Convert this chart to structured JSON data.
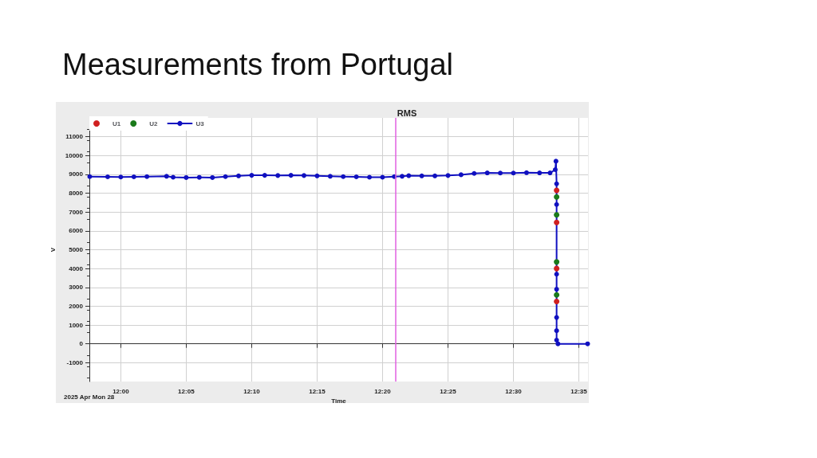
{
  "chart_data": {
    "type": "line",
    "title": "Measurements from Portugal",
    "subtitle": "RMS",
    "xlabel": "Time",
    "ylabel": "V",
    "annotations": [
      "2025 Apr Mon 28"
    ],
    "series": [
      {
        "name": "U1",
        "type": "scatter",
        "color": "#d02020",
        "x": [
          12.555,
          12.555,
          12.555,
          12.555
        ],
        "values": [
          8150,
          6450,
          4000,
          2250
        ]
      },
      {
        "name": "U2",
        "type": "scatter",
        "color": "#1a7a1a",
        "x": [
          12.555,
          12.555,
          12.555,
          12.555
        ],
        "values": [
          7800,
          6850,
          4350,
          2600
        ]
      },
      {
        "name": "U3",
        "color": "#1010c0",
        "x": [
          11.9605,
          11.9833,
          12.0,
          12.0167,
          12.0333,
          12.0583,
          12.0667,
          12.0833,
          12.1,
          12.1167,
          12.1333,
          12.15,
          12.1667,
          12.1833,
          12.2,
          12.2167,
          12.2333,
          12.25,
          12.2667,
          12.2833,
          12.3,
          12.3167,
          12.3333,
          12.3483,
          12.3583,
          12.3667,
          12.3833,
          12.4,
          12.4167,
          12.4333,
          12.45,
          12.4667,
          12.4833,
          12.5,
          12.5167,
          12.5333,
          12.5467,
          12.5533,
          12.5542,
          12.555,
          12.555,
          12.555,
          12.555,
          12.555,
          12.555,
          12.555,
          12.5567,
          12.5945
        ],
        "values": [
          8880,
          8870,
          8860,
          8870,
          8880,
          8900,
          8850,
          8830,
          8840,
          8830,
          8880,
          8920,
          8950,
          8950,
          8940,
          8950,
          8940,
          8920,
          8900,
          8880,
          8870,
          8850,
          8850,
          8880,
          8900,
          8930,
          8920,
          8920,
          8940,
          8980,
          9050,
          9080,
          9070,
          9070,
          9090,
          9080,
          9080,
          9250,
          9700,
          8500,
          7400,
          3700,
          2900,
          1400,
          700,
          200,
          0,
          0
        ]
      }
    ],
    "xlim": [
      11.96,
      12.595
    ],
    "xticks": [
      {
        "value": 12.0,
        "label": "12:00"
      },
      {
        "value": 12.0833,
        "label": "12:05"
      },
      {
        "value": 12.1667,
        "label": "12:10"
      },
      {
        "value": 12.25,
        "label": "12:15"
      },
      {
        "value": 12.3333,
        "label": "12:20"
      },
      {
        "value": 12.4167,
        "label": "12:25"
      },
      {
        "value": 12.5,
        "label": "12:30"
      },
      {
        "value": 12.5833,
        "label": "12:35"
      }
    ],
    "ylim": [
      -2000,
      12000
    ],
    "yticks": [
      -1000,
      0,
      1000,
      2000,
      3000,
      4000,
      5000,
      6000,
      7000,
      8000,
      9000,
      10000,
      11000
    ],
    "ref_lines": [
      {
        "axis": "x",
        "value": 12.348,
        "color": "#e060e0"
      }
    ],
    "grid": true,
    "legend": "top left",
    "marker": "circle",
    "line_style": "solid"
  }
}
